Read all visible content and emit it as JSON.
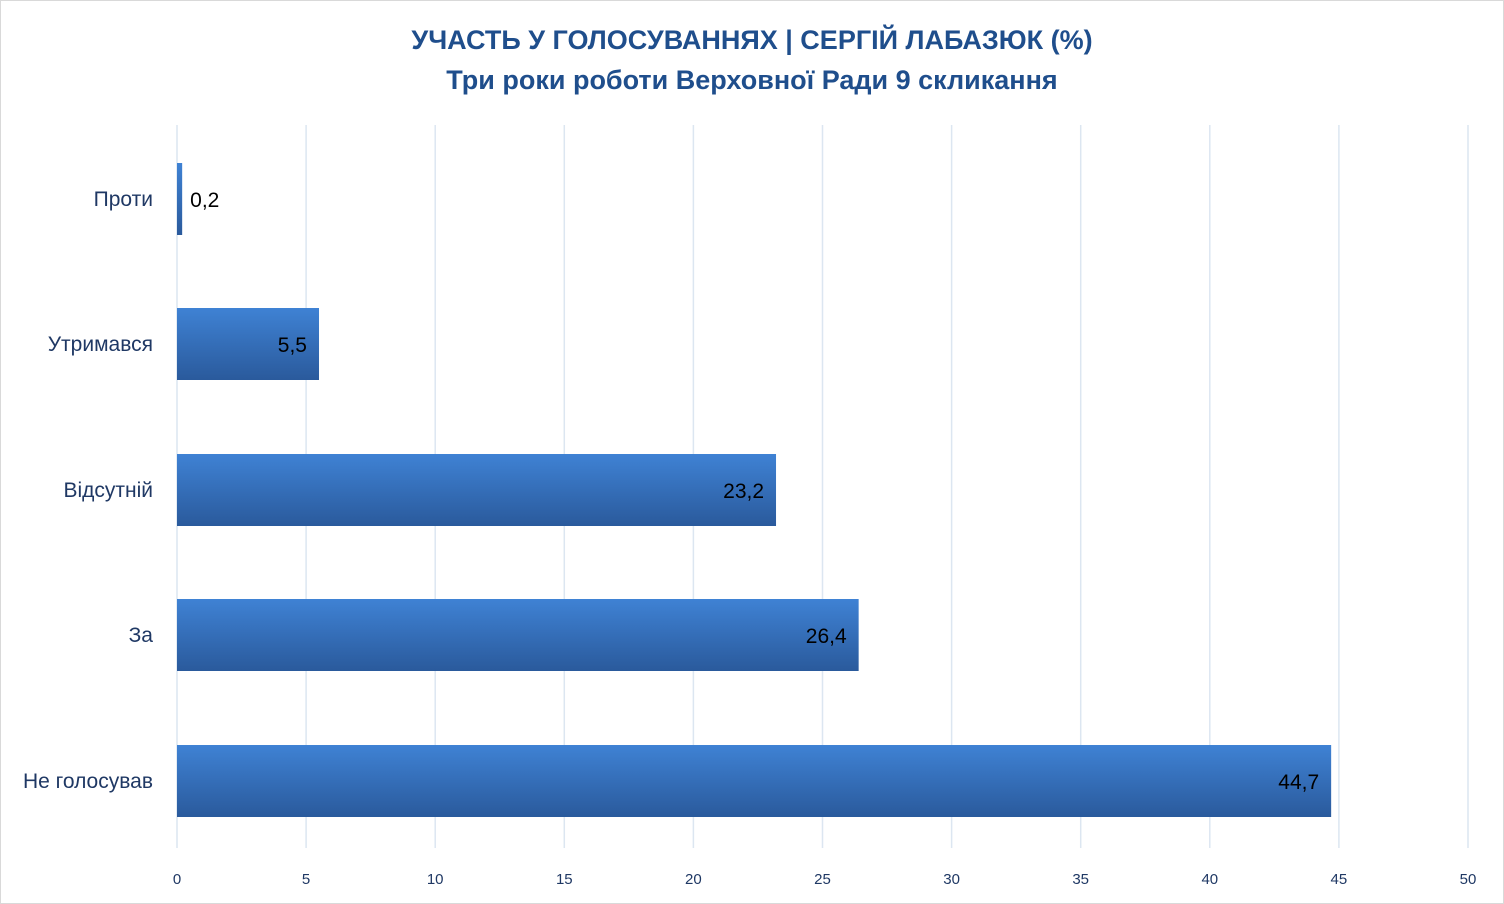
{
  "chart_data": {
    "type": "bar",
    "orientation": "horizontal",
    "title": "УЧАСТЬ У ГОЛОСУВАННЯХ | СЕРГІЙ ЛАБАЗЮК (%)",
    "subtitle": "Три роки роботи Верховної Ради 9 скликання",
    "categories": [
      "Проти",
      "Утримався",
      "Відсутній",
      "За",
      "Не голосував"
    ],
    "values": [
      0.2,
      5.5,
      23.2,
      26.4,
      44.7
    ],
    "value_labels": [
      "0,2",
      "5,5",
      "23,2",
      "26,4",
      "44,7"
    ],
    "xlim": [
      0,
      50
    ],
    "x_ticks": [
      0,
      5,
      10,
      15,
      20,
      25,
      30,
      35,
      40,
      45,
      50
    ],
    "grid": "vertical",
    "legend": "none",
    "colors": {
      "bar_top": "#3f82d4",
      "bar_bottom": "#2a5a9c",
      "title": "#1f4e8c",
      "gridline": "#dce6f1"
    }
  }
}
